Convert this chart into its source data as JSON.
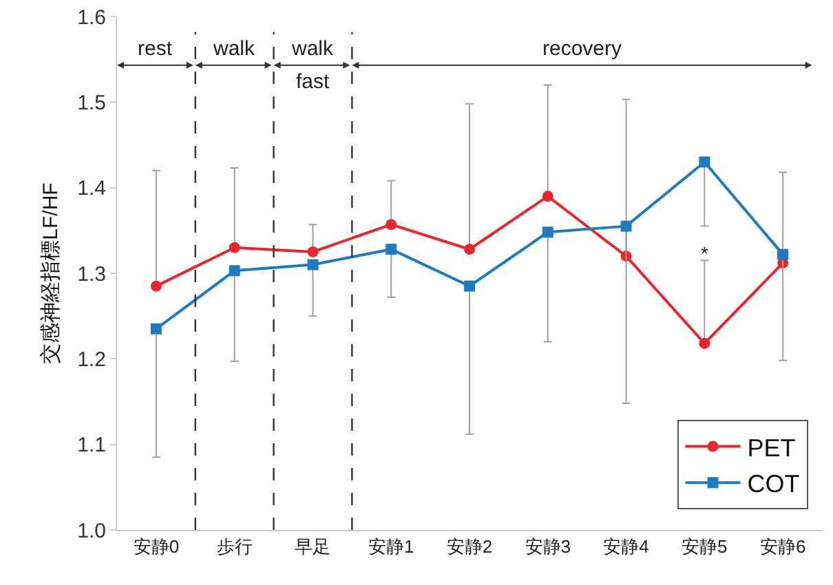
{
  "chart_data": {
    "type": "line",
    "ylabel": "交感神経指標LF/HF",
    "categories": [
      "安静0",
      "歩行",
      "早足",
      "安静1",
      "安静2",
      "安静3",
      "安静4",
      "安静5",
      "安静6"
    ],
    "series": [
      {
        "name": "PET",
        "color": "#e8262b",
        "marker": "circle",
        "values": [
          1.285,
          1.33,
          1.325,
          1.357,
          1.328,
          1.39,
          1.32,
          1.218,
          1.312
        ],
        "errors": [
          [
            1.285,
            1.42
          ],
          [
            1.33,
            1.423
          ],
          [
            1.325,
            1.357
          ],
          [
            1.357,
            1.408
          ],
          [
            1.328,
            1.498
          ],
          [
            1.39,
            1.52
          ],
          [
            1.32,
            1.503
          ],
          [
            1.218,
            1.315
          ],
          [
            1.312,
            1.418
          ]
        ]
      },
      {
        "name": "COT",
        "color": "#1f7bc1",
        "marker": "square",
        "values": [
          1.235,
          1.303,
          1.31,
          1.328,
          1.285,
          1.348,
          1.355,
          1.43,
          1.322
        ],
        "errors": [
          [
            1.085,
            1.235
          ],
          [
            1.197,
            1.303
          ],
          [
            1.25,
            1.31
          ],
          [
            1.272,
            1.328
          ],
          [
            1.112,
            1.285
          ],
          [
            1.22,
            1.348
          ],
          [
            1.148,
            1.355
          ],
          [
            1.355,
            1.43
          ],
          [
            1.198,
            1.322
          ]
        ]
      }
    ],
    "ylim": [
      1.0,
      1.6
    ],
    "yticks": [
      {
        "value": 1.0,
        "label": "1.0"
      },
      1.1,
      1.2,
      1.3,
      1.4,
      1.5,
      1.6
    ],
    "grid": false,
    "legend": "bottom right",
    "annotations": [
      "rest",
      "walk",
      "walk\nfast",
      "recovery",
      "*"
    ]
  }
}
